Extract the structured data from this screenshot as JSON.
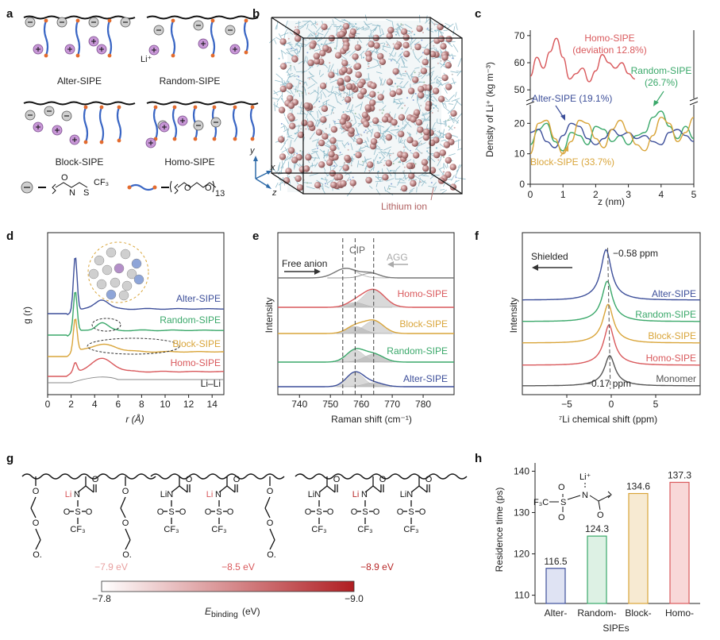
{
  "panels": {
    "a": {
      "label": "a",
      "names": [
        "Alter-SIPE",
        "Random-SIPE",
        "Block-SIPE",
        "Homo-SIPE"
      ],
      "li_label": "Li⁺",
      "legend_anion_text": "CF₃",
      "legend_peo_sub": "13"
    },
    "b": {
      "label": "b",
      "lithium_label": "Lithium ion",
      "axes": [
        "y",
        "x",
        "z"
      ]
    },
    "c": {
      "label": "c",
      "ylabel": "Density of Li⁺ (kg m⁻³)",
      "xlabel": "z (nm)",
      "xticks": [
        "0",
        "1",
        "2",
        "3",
        "4",
        "5"
      ],
      "yticks_upper": [
        "50",
        "60",
        "70"
      ],
      "yticks_lower": [
        "0",
        "10",
        "20"
      ],
      "annotations": [
        {
          "text": "Homo-SIPE",
          "color": "#d9595c"
        },
        {
          "text": "(deviation 12.8%)",
          "color": "#d9595c"
        },
        {
          "text": "Random-SIPE",
          "color": "#3aa86a"
        },
        {
          "text": "(26.7%)",
          "color": "#3aa86a"
        },
        {
          "text": "Alter-SIPE (19.1%)",
          "color": "#3d4f9a"
        },
        {
          "text": "Block-SIPE (33.7%)",
          "color": "#d9a53a"
        }
      ]
    },
    "d": {
      "label": "d",
      "ylabel": "g (r)",
      "xlabel": "r (Å)",
      "xticks": [
        "0",
        "2",
        "4",
        "6",
        "8",
        "10",
        "12",
        "14"
      ],
      "series_labels": [
        {
          "text": "Alter-SIPE",
          "color": "#3d4f9a"
        },
        {
          "text": "Random-SIPE",
          "color": "#3aa86a"
        },
        {
          "text": "Block-SIPE",
          "color": "#d9a53a"
        },
        {
          "text": "Homo-SIPE",
          "color": "#d9595c"
        }
      ],
      "pair_label": "Li–Li"
    },
    "e": {
      "label": "e",
      "ylabel": "Intensity",
      "xlabel": "Raman shift (cm⁻¹)",
      "xticks": [
        "740",
        "750",
        "760",
        "770",
        "780"
      ],
      "free_anion": "Free anion",
      "cip": "CIP",
      "agg": "AGG",
      "series_labels": [
        {
          "text": "Homo-SIPE",
          "color": "#d9595c"
        },
        {
          "text": "Block-SIPE",
          "color": "#d9a53a"
        },
        {
          "text": "Random-SIPE",
          "color": "#3aa86a"
        },
        {
          "text": "Alter-SIPE",
          "color": "#3d4f9a"
        }
      ]
    },
    "f": {
      "label": "f",
      "ylabel": "Intensity",
      "xlabel": "⁷Li chemical shift (ppm)",
      "xticks": [
        "−5",
        "0",
        "5"
      ],
      "shielded": "Shielded",
      "top_value": "−0.58 ppm",
      "bottom_value": "−0.17 ppm",
      "series_labels": [
        {
          "text": "Alter-SIPE",
          "color": "#3d4f9a"
        },
        {
          "text": "Random-SIPE",
          "color": "#3aa86a"
        },
        {
          "text": "Block-SIPE",
          "color": "#d9a53a"
        },
        {
          "text": "Homo-SIPE",
          "color": "#d9595c"
        },
        {
          "text": "Monomer",
          "color": "#555555"
        }
      ]
    },
    "g": {
      "label": "g",
      "energies": [
        {
          "text": "−7.9 eV",
          "color": "#e8a0a0"
        },
        {
          "text": "−8.5 eV",
          "color": "#d9595c"
        },
        {
          "text": "−8.9 eV",
          "color": "#b82828"
        }
      ],
      "colorbar_min": "−7.8",
      "colorbar_max": "−9.0",
      "colorbar_label": "E",
      "colorbar_label_sub": "binding",
      "colorbar_unit": " (eV)",
      "chem_lin": "LiN",
      "chem_n": "N",
      "chem_li": "Li",
      "chem_o": "O",
      "chem_s": "S",
      "chem_cf3": "CF₃"
    },
    "h": {
      "label": "h",
      "ylabel": "Residence time (ps)",
      "xlabel": "SIPEs",
      "yticks": [
        "110",
        "120",
        "130",
        "140"
      ],
      "chem_li": "Li⁺",
      "chem_n": "N",
      "chem_f3c": "F₃C",
      "chem_s": "S",
      "chem_o": "O"
    }
  },
  "chart_data": [
    {
      "type": "bar",
      "panel": "h",
      "categories": [
        "Alter-",
        "Random-",
        "Block-",
        "Homo-"
      ],
      "values": [
        116.5,
        124.3,
        134.6,
        137.3
      ],
      "ylabel": "Residence time (ps)",
      "xlabel": "SIPEs",
      "ylim": [
        108,
        142
      ],
      "colors": [
        "#3d4f9a",
        "#3aa86a",
        "#d9a53a",
        "#d9595c"
      ],
      "fills": [
        "#dfe3f3",
        "#ddf1e4",
        "#f7ead2",
        "#f8d8d8"
      ]
    },
    {
      "type": "line",
      "panel": "c",
      "xlabel": "z (nm)",
      "ylabel": "Density of Li⁺ (kg m⁻³)",
      "xlim": [
        0,
        5
      ],
      "series": [
        {
          "name": "Homo-SIPE",
          "color": "#d9595c",
          "x": [
            0,
            0.2,
            0.4,
            0.6,
            0.8,
            1.0,
            1.2,
            1.4,
            1.6,
            1.8,
            2.0,
            2.2,
            2.4,
            2.6,
            2.8,
            3.0,
            3.2
          ],
          "y": [
            55,
            62,
            58,
            64,
            69,
            62,
            54,
            56,
            58,
            53,
            57,
            63,
            60,
            58,
            60,
            56,
            54
          ]
        },
        {
          "name": "Random-SIPE",
          "color": "#3aa86a",
          "x": [
            0,
            0.25,
            0.5,
            0.75,
            1.0,
            1.25,
            1.5,
            1.75,
            2.0,
            2.25,
            2.5,
            2.75,
            3.0,
            3.25,
            3.5,
            3.75,
            4.0,
            4.25,
            4.5,
            4.75,
            5.0
          ],
          "y": [
            13,
            18,
            20,
            14,
            11,
            17,
            16,
            13,
            19,
            18,
            14,
            16,
            13,
            16,
            17,
            22,
            24,
            19,
            15,
            19,
            15
          ]
        },
        {
          "name": "Alter-SIPE",
          "color": "#3d4f9a",
          "x": [
            0,
            0.25,
            0.5,
            0.75,
            1.0,
            1.25,
            1.5,
            1.75,
            2.0,
            2.25,
            2.5,
            2.75,
            3.0,
            3.25,
            3.5,
            3.75,
            4.0,
            4.25,
            4.5,
            4.75,
            5.0
          ],
          "y": [
            17,
            18,
            14,
            12,
            16,
            20,
            19,
            15,
            13,
            15,
            18,
            16,
            17,
            15,
            16,
            14,
            13,
            17,
            18,
            16,
            14
          ]
        },
        {
          "name": "Block-SIPE",
          "color": "#d9a53a",
          "x": [
            0,
            0.25,
            0.5,
            0.75,
            1.0,
            1.25,
            1.5,
            1.75,
            2.0,
            2.25,
            2.5,
            2.75,
            3.0,
            3.25,
            3.5,
            3.75,
            4.0,
            4.25,
            4.5,
            4.75,
            5.0
          ],
          "y": [
            10,
            20,
            21,
            15,
            10,
            14,
            21,
            20,
            15,
            12,
            18,
            21,
            17,
            13,
            11,
            16,
            22,
            20,
            14,
            17,
            22
          ]
        }
      ]
    }
  ]
}
